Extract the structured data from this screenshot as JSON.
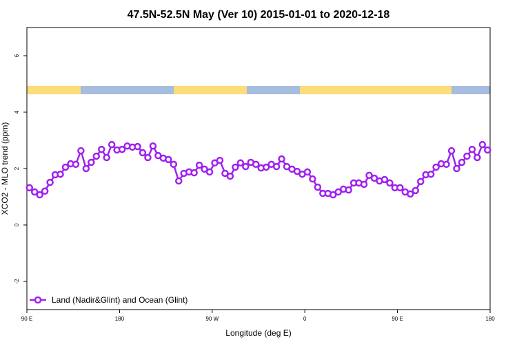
{
  "chart_data": {
    "type": "line",
    "title": "47.5N-52.5N May (Ver 10)   2015-01-01 to 2020-12-18",
    "x_label": "Longitude (deg E)",
    "y_label": "XCO2 - MLO trend (ppm)",
    "xlim": [
      90,
      540
    ],
    "ylim": [
      -3,
      7
    ],
    "xticks": [
      {
        "value": 90,
        "label": "90 E"
      },
      180,
      {
        "value": 270,
        "label": "90 W"
      },
      {
        "value": 360,
        "label": "0"
      },
      {
        "value": 450,
        "label": "90 E"
      },
      {
        "value": 540,
        "label": "180"
      }
    ],
    "yticks": [
      -2,
      0,
      2,
      4,
      6
    ],
    "legend": "bottom-left",
    "x": [
      92.5,
      97.5,
      102.5,
      107.5,
      112.5,
      117.5,
      122.5,
      127.5,
      132.5,
      137.5,
      142.5,
      147.5,
      152.5,
      157.5,
      162.5,
      167.5,
      172.5,
      177.5,
      182.5,
      187.5,
      192.5,
      197.5,
      202.5,
      207.5,
      212.5,
      217.5,
      222.5,
      227.5,
      232.5,
      237.5,
      242.5,
      247.5,
      252.5,
      257.5,
      262.5,
      267.5,
      272.5,
      277.5,
      282.5,
      287.5,
      292.5,
      297.5,
      302.5,
      307.5,
      312.5,
      317.5,
      322.5,
      327.5,
      332.5,
      337.5,
      342.5,
      347.5,
      352.5,
      357.5,
      362.5,
      367.5,
      372.5,
      377.5,
      382.5,
      387.5,
      392.5,
      397.5,
      402.5,
      407.5,
      412.5,
      417.5,
      422.5,
      427.5,
      432.5,
      437.5,
      442.5,
      447.5,
      452.5,
      457.5,
      462.5,
      467.5,
      472.5,
      477.5,
      482.5,
      487.5,
      492.5,
      497.5,
      502.5,
      507.5,
      512.5,
      517.5,
      522.5,
      527.5,
      532.5,
      537.5
    ],
    "series": [
      {
        "name": "Land (Nadir&Glint) and Ocean (Glint)",
        "color": "#a020f0",
        "values": [
          1.32,
          1.17,
          1.07,
          1.2,
          1.51,
          1.78,
          1.8,
          2.05,
          2.17,
          2.15,
          2.63,
          2.0,
          2.22,
          2.44,
          2.68,
          2.39,
          2.85,
          2.66,
          2.68,
          2.8,
          2.76,
          2.78,
          2.56,
          2.39,
          2.8,
          2.46,
          2.37,
          2.32,
          2.15,
          1.56,
          1.83,
          1.88,
          1.85,
          2.12,
          1.98,
          1.88,
          2.2,
          2.29,
          1.83,
          1.73,
          2.05,
          2.2,
          2.07,
          2.22,
          2.15,
          2.02,
          2.05,
          2.15,
          2.07,
          2.34,
          2.07,
          1.98,
          1.9,
          1.8,
          1.88,
          1.63,
          1.34,
          1.12,
          1.12,
          1.07,
          1.17,
          1.27,
          1.24,
          1.49,
          1.49,
          1.44,
          1.76,
          1.66,
          1.56,
          1.61,
          1.49,
          1.32,
          1.32,
          1.17,
          1.1,
          1.22,
          1.54,
          1.78,
          1.8,
          2.05,
          2.17,
          2.15,
          2.63,
          2.0,
          2.22,
          2.44,
          2.68,
          2.39,
          2.85,
          2.66
        ]
      }
    ]
  }
}
